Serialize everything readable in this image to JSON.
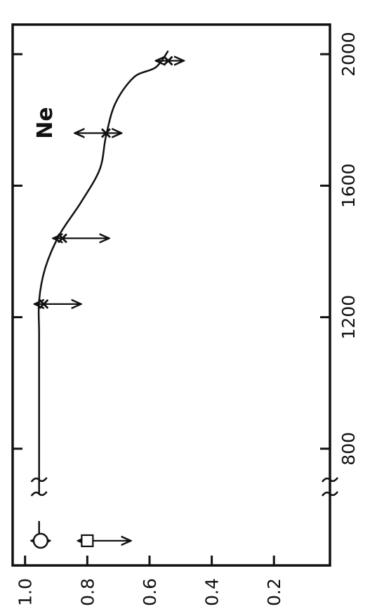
{
  "chart_data": {
    "type": "line",
    "title": "",
    "xlabel": "",
    "ylabel": "",
    "orientation": "rotated-90-clockwise",
    "annotation": "Ne",
    "x_ticks": [
      800,
      1200,
      1600,
      2000
    ],
    "y_ticks": [
      1.0,
      0.8,
      0.6,
      0.4,
      0.2
    ],
    "y_tick_labels": [
      "1.0",
      "0.8",
      "0.6",
      "0.4",
      "0.2"
    ],
    "xlim": [
      445,
      2090
    ],
    "ylim": [
      0.02,
      1.04
    ],
    "axis_break": true,
    "curve": {
      "x": [
        520,
        580,
        660,
        1000,
        1150,
        1250,
        1350,
        1450,
        1550,
        1650,
        1750,
        1850,
        1930,
        1960,
        2010
      ],
      "y": [
        0.955,
        0.955,
        0.955,
        0.955,
        0.955,
        0.955,
        0.935,
        0.89,
        0.82,
        0.76,
        0.74,
        0.71,
        0.65,
        0.58,
        0.54
      ]
    },
    "points": [
      {
        "marker": "circle",
        "x": 520,
        "y": 0.95,
        "err_low": 0.92,
        "err_high": 0.98
      },
      {
        "marker": "square",
        "x": 520,
        "y": 0.8,
        "err_low": 0.66,
        "err_high": 0.83
      },
      {
        "marker": "cross",
        "x": 1240,
        "y": 0.94,
        "err_low": 0.82,
        "err_high": 0.97
      },
      {
        "marker": "cross",
        "x": 1440,
        "y": 0.88,
        "err_low": 0.73,
        "err_high": 0.91
      },
      {
        "marker": "cross",
        "x": 1760,
        "y": 0.74,
        "err_low": 0.69,
        "err_high": 0.84
      },
      {
        "marker": "cross",
        "x": 1980,
        "y": 0.54,
        "err_low": 0.49,
        "err_high": 0.58
      }
    ],
    "grid": false,
    "legend": "none"
  }
}
